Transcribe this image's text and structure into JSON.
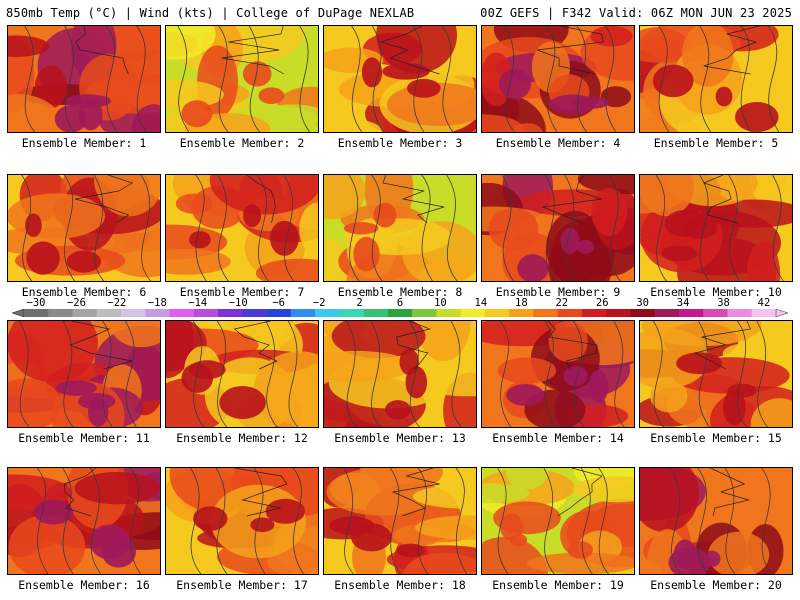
{
  "header": {
    "left": "850mb Temp (°C) | Wind (kts) | College of DuPage NEXLAB",
    "right": "00Z GEFS | F342 Valid: 06Z MON JUN 23 2025"
  },
  "panels": [
    {
      "label": "Ensemble Member: 1",
      "palette": "hot"
    },
    {
      "label": "Ensemble Member: 2",
      "palette": "cool"
    },
    {
      "label": "Ensemble Member: 3",
      "palette": "warm"
    },
    {
      "label": "Ensemble Member: 4",
      "palette": "hot"
    },
    {
      "label": "Ensemble Member: 5",
      "palette": "warm"
    },
    {
      "label": "Ensemble Member: 6",
      "palette": "warm"
    },
    {
      "label": "Ensemble Member: 7",
      "palette": "warm"
    },
    {
      "label": "Ensemble Member: 8",
      "palette": "cool"
    },
    {
      "label": "Ensemble Member: 9",
      "palette": "hot"
    },
    {
      "label": "Ensemble Member: 10",
      "palette": "warm"
    },
    {
      "label": "Ensemble Member: 11",
      "palette": "hot"
    },
    {
      "label": "Ensemble Member: 12",
      "palette": "warm"
    },
    {
      "label": "Ensemble Member: 13",
      "palette": "warm"
    },
    {
      "label": "Ensemble Member: 14",
      "palette": "hot"
    },
    {
      "label": "Ensemble Member: 15",
      "palette": "warm"
    },
    {
      "label": "Ensemble Member: 16",
      "palette": "hot"
    },
    {
      "label": "Ensemble Member: 17",
      "palette": "warm"
    },
    {
      "label": "Ensemble Member: 18",
      "palette": "warm"
    },
    {
      "label": "Ensemble Member: 19",
      "palette": "cool"
    },
    {
      "label": "Ensemble Member: 20",
      "palette": "hot"
    }
  ],
  "colorbar": {
    "ticks": [
      "-30",
      "-26",
      "-22",
      "-18",
      "-14",
      "-10",
      "-6",
      "-2",
      "2",
      "6",
      "10",
      "14",
      "18",
      "22",
      "26",
      "30",
      "34",
      "38",
      "42"
    ],
    "colors": [
      "#6e6e6e",
      "#8a8a8a",
      "#a4a4a4",
      "#bdbdbd",
      "#d4c2e8",
      "#c89ae0",
      "#e25cf0",
      "#b44de0",
      "#7a32d8",
      "#4a3ad6",
      "#2546d8",
      "#2f8ef0",
      "#39c8f0",
      "#3cd6b4",
      "#36c276",
      "#2aa43c",
      "#7cc83a",
      "#c8dc28",
      "#f0ec28",
      "#f5c91e",
      "#f5a21a",
      "#f0751c",
      "#e84a1c",
      "#d21e1e",
      "#b8121c",
      "#8e0c18",
      "#9e1a5a",
      "#c21a8c",
      "#d84ab6",
      "#ea8ae0",
      "#f4c2f0"
    ],
    "palette_colors": {
      "cool": [
        "#7cc83a",
        "#c8dc28",
        "#f0ec28",
        "#f5c91e",
        "#f5a21a",
        "#f0751c",
        "#e84a1c"
      ],
      "warm": [
        "#f0ec28",
        "#f5c91e",
        "#f5a21a",
        "#f0751c",
        "#e84a1c",
        "#d21e1e",
        "#b8121c"
      ],
      "hot": [
        "#f5a21a",
        "#f0751c",
        "#e84a1c",
        "#d21e1e",
        "#b8121c",
        "#8e0c18",
        "#9e1a5a"
      ]
    }
  }
}
